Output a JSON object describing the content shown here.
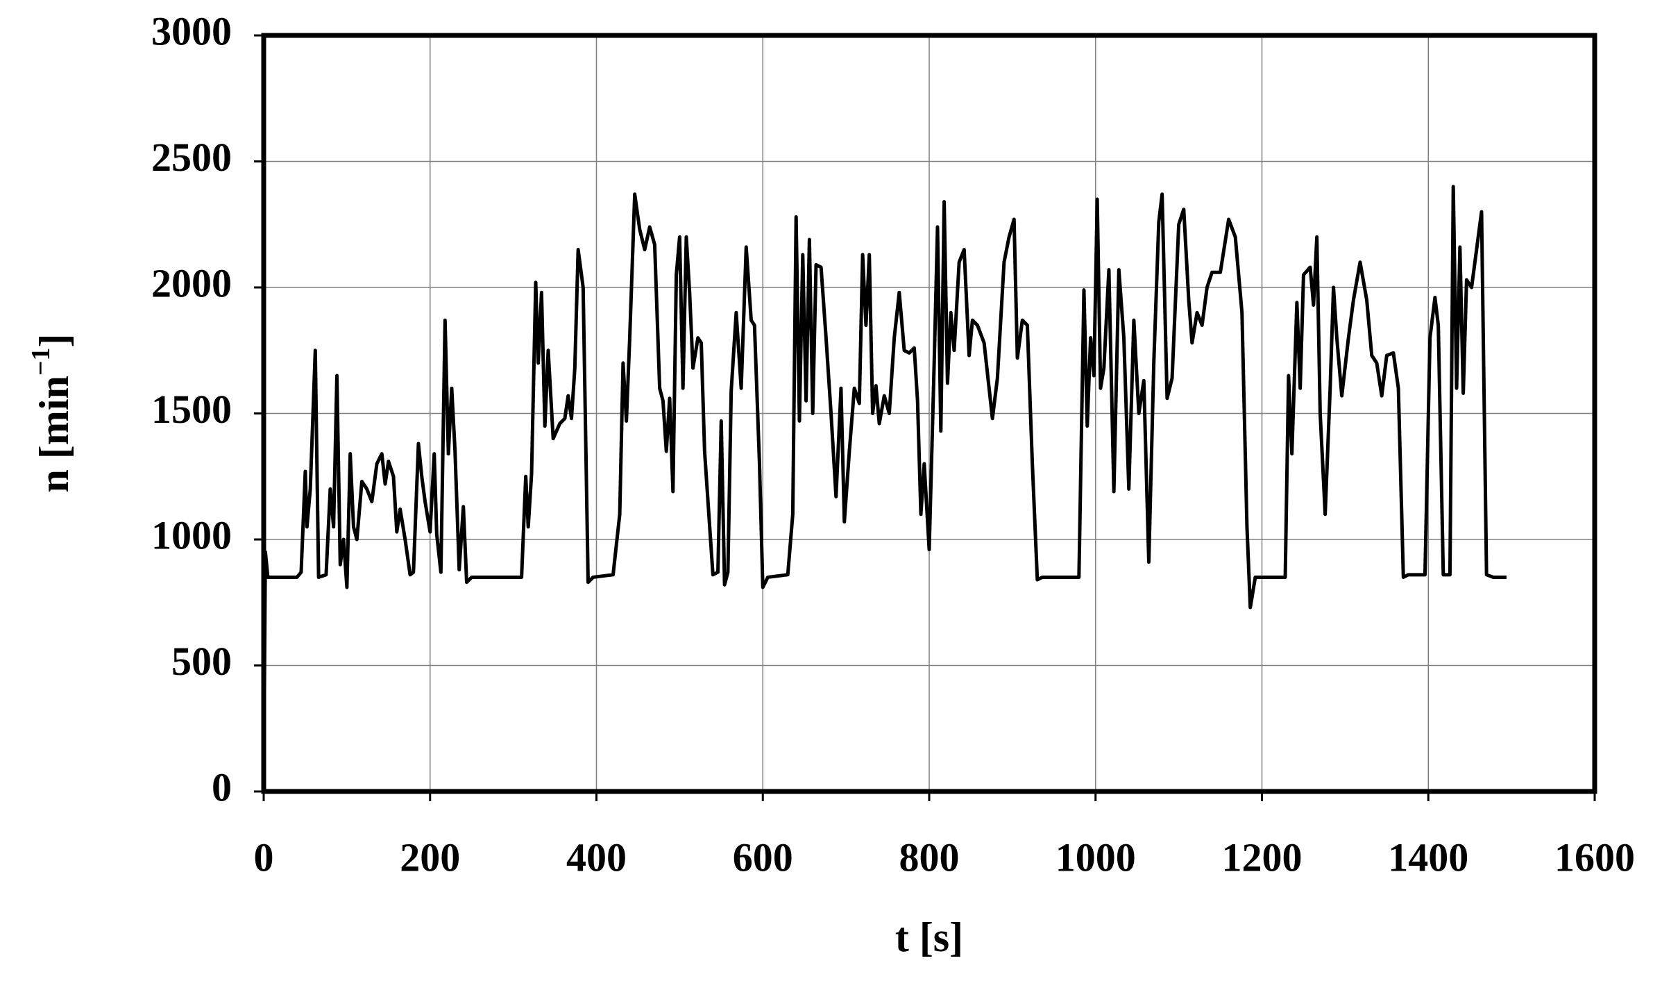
{
  "chart_data": {
    "type": "line",
    "x_label": "t [s]",
    "y_label": [
      "n [min",
      "−1",
      "]"
    ],
    "xlim": [
      0,
      1600
    ],
    "xticks": [
      0,
      200,
      400,
      600,
      800,
      1000,
      1200,
      1400,
      1600
    ],
    "ylim": [
      0,
      3000
    ],
    "yticks": [
      0,
      500,
      1000,
      1500,
      2000,
      2500,
      3000
    ],
    "grid": true,
    "x": [
      0,
      2,
      5,
      40,
      45,
      50,
      52,
      56,
      62,
      66,
      75,
      80,
      84,
      88,
      92,
      96,
      100,
      104,
      108,
      112,
      118,
      124,
      130,
      136,
      142,
      146,
      150,
      156,
      160,
      164,
      170,
      176,
      180,
      186,
      190,
      194,
      200,
      205,
      208,
      213,
      218,
      222,
      226,
      230,
      235,
      240,
      244,
      250,
      310,
      315,
      318,
      322,
      327,
      330,
      334,
      338,
      342,
      348,
      356,
      362,
      366,
      370,
      374,
      378,
      384,
      390,
      396,
      420,
      428,
      432,
      436,
      440,
      446,
      452,
      458,
      464,
      470,
      476,
      480,
      484,
      488,
      492,
      496,
      500,
      504,
      508,
      512,
      516,
      522,
      526,
      530,
      540,
      546,
      550,
      554,
      558,
      562,
      568,
      574,
      580,
      586,
      590,
      596,
      600,
      606,
      630,
      636,
      640,
      644,
      648,
      652,
      656,
      660,
      664,
      670,
      676,
      682,
      688,
      694,
      698,
      704,
      710,
      716,
      720,
      724,
      728,
      732,
      736,
      740,
      746,
      752,
      758,
      764,
      770,
      776,
      782,
      786,
      790,
      794,
      800,
      806,
      810,
      814,
      818,
      822,
      826,
      830,
      836,
      842,
      848,
      852,
      858,
      866,
      872,
      876,
      882,
      890,
      896,
      902,
      906,
      912,
      918,
      924,
      930,
      936,
      980,
      986,
      990,
      994,
      998,
      1002,
      1006,
      1010,
      1016,
      1022,
      1028,
      1034,
      1040,
      1046,
      1052,
      1058,
      1064,
      1070,
      1076,
      1080,
      1086,
      1092,
      1100,
      1106,
      1112,
      1116,
      1122,
      1128,
      1134,
      1140,
      1150,
      1160,
      1168,
      1176,
      1182,
      1186,
      1192,
      1228,
      1232,
      1236,
      1242,
      1246,
      1250,
      1258,
      1262,
      1266,
      1270,
      1276,
      1282,
      1286,
      1290,
      1296,
      1304,
      1310,
      1318,
      1326,
      1332,
      1338,
      1344,
      1350,
      1358,
      1364,
      1370,
      1376,
      1396,
      1402,
      1408,
      1412,
      1418,
      1426,
      1430,
      1434,
      1438,
      1442,
      1446,
      1452,
      1458,
      1464,
      1470,
      1478,
      1494
    ],
    "series": [
      {
        "color": "#000000",
        "values": [
          0,
          950,
          850,
          850,
          870,
          1270,
          1050,
          1200,
          1750,
          850,
          860,
          1200,
          1050,
          1650,
          900,
          1000,
          810,
          1340,
          1050,
          1000,
          1230,
          1200,
          1150,
          1300,
          1340,
          1220,
          1310,
          1250,
          1030,
          1120,
          1000,
          860,
          870,
          1380,
          1250,
          1150,
          1030,
          1340,
          1020,
          870,
          1870,
          1340,
          1600,
          1350,
          880,
          1130,
          830,
          850,
          850,
          1250,
          1050,
          1260,
          2020,
          1700,
          1980,
          1450,
          1750,
          1400,
          1460,
          1480,
          1570,
          1480,
          1680,
          2150,
          2000,
          830,
          850,
          860,
          1100,
          1700,
          1470,
          1800,
          2370,
          2230,
          2150,
          2240,
          2170,
          1600,
          1550,
          1350,
          1560,
          1190,
          2050,
          2200,
          1600,
          2200,
          1980,
          1680,
          1800,
          1780,
          1350,
          860,
          870,
          1470,
          820,
          870,
          1590,
          1900,
          1600,
          2160,
          1870,
          1850,
          1300,
          810,
          850,
          860,
          1100,
          2280,
          1470,
          2130,
          1550,
          2190,
          1500,
          2090,
          2080,
          1800,
          1500,
          1170,
          1600,
          1070,
          1350,
          1600,
          1540,
          2130,
          1850,
          2130,
          1500,
          1610,
          1460,
          1570,
          1500,
          1800,
          1980,
          1750,
          1740,
          1760,
          1550,
          1100,
          1300,
          960,
          1700,
          2240,
          1430,
          2340,
          1620,
          1900,
          1750,
          2100,
          2150,
          1730,
          1870,
          1850,
          1780,
          1600,
          1480,
          1640,
          2100,
          2200,
          2270,
          1720,
          1870,
          1850,
          1300,
          840,
          850,
          850,
          1990,
          1450,
          1800,
          1650,
          2350,
          1600,
          1680,
          2070,
          1190,
          2070,
          1800,
          1200,
          1870,
          1500,
          1630,
          910,
          1700,
          2260,
          2370,
          1560,
          1640,
          2250,
          2310,
          1950,
          1780,
          1900,
          1850,
          2000,
          2060,
          2060,
          2270,
          2200,
          1900,
          1050,
          730,
          850,
          850,
          1650,
          1340,
          1940,
          1600,
          2050,
          2080,
          1930,
          2200,
          1500,
          1100,
          1600,
          2000,
          1800,
          1570,
          1800,
          1950,
          2100,
          1950,
          1730,
          1700,
          1570,
          1730,
          1740,
          1600,
          850,
          860,
          860,
          1800,
          1960,
          1850,
          860,
          860,
          2400,
          1600,
          2160,
          1580,
          2030,
          2000,
          2150,
          2300,
          860,
          850,
          850
        ]
      }
    ]
  }
}
